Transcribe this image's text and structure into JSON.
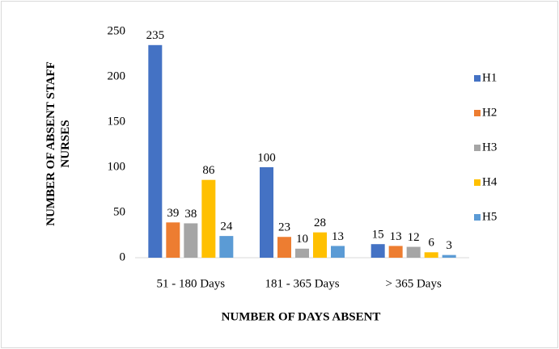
{
  "chart_data": {
    "type": "bar",
    "categories": [
      "51 - 180 Days",
      "181 - 365 Days",
      "> 365 Days"
    ],
    "series": [
      {
        "name": "H1",
        "color": "#4472c4",
        "values": [
          235,
          100,
          15
        ]
      },
      {
        "name": "H2",
        "color": "#ed7d31",
        "values": [
          39,
          23,
          13
        ]
      },
      {
        "name": "H3",
        "color": "#a5a5a5",
        "values": [
          38,
          10,
          12
        ]
      },
      {
        "name": "H4",
        "color": "#ffc000",
        "values": [
          86,
          28,
          6
        ]
      },
      {
        "name": "H5",
        "color": "#5b9bd5",
        "values": [
          24,
          13,
          3
        ]
      }
    ],
    "ylim": [
      0,
      250
    ],
    "yticks": [
      0,
      50,
      100,
      150,
      200,
      250
    ],
    "ylabel": "NUMBER OF ABSENT STAFF NURSES",
    "xlabel": "NUMBER OF DAYS ABSENT",
    "legend": "right"
  }
}
